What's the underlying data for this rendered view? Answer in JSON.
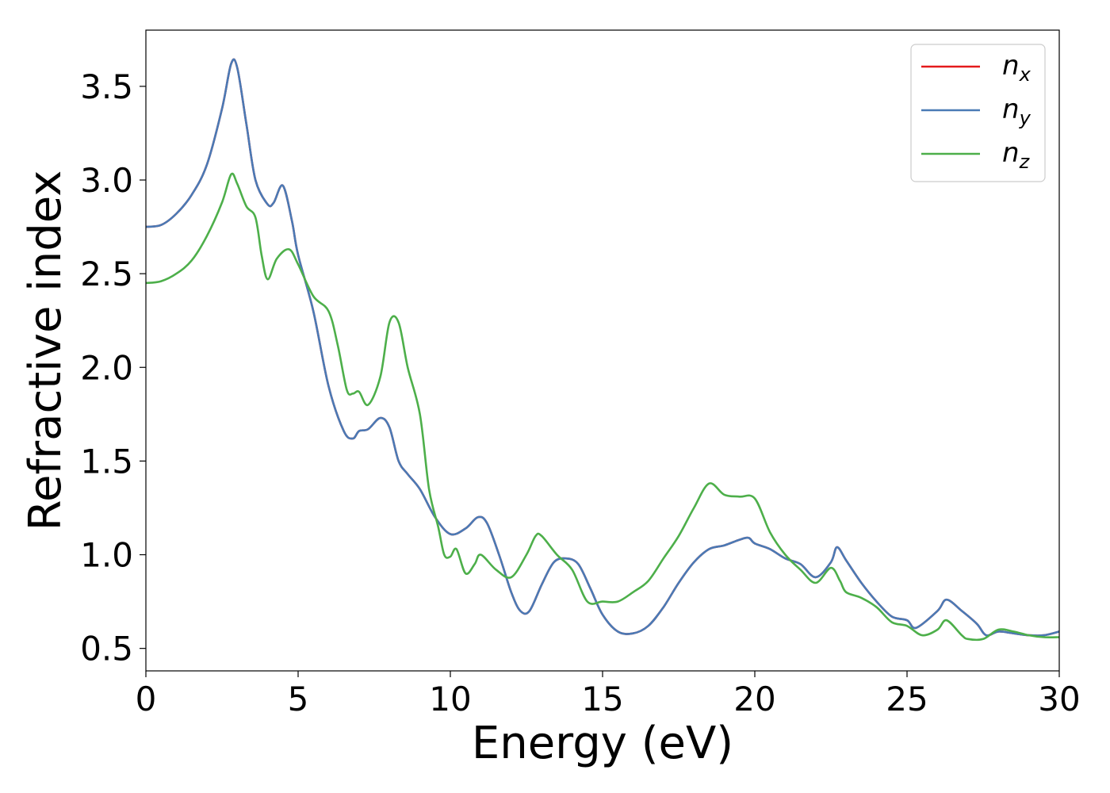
{
  "chart_data": {
    "type": "line",
    "xlabel": "Energy (eV)",
    "ylabel": "Refractive index",
    "xlim": [
      0,
      30
    ],
    "ylim": [
      0.38,
      3.8
    ],
    "x_ticks": [
      0,
      5,
      10,
      15,
      20,
      25,
      30
    ],
    "y_ticks": [
      0.5,
      1.0,
      1.5,
      2.0,
      2.5,
      3.0,
      3.5
    ],
    "x_tick_labels": [
      "0",
      "5",
      "10",
      "15",
      "20",
      "25",
      "30"
    ],
    "y_tick_labels": [
      "0.5",
      "1.0",
      "1.5",
      "2.0",
      "2.5",
      "3.0",
      "3.5"
    ],
    "grid": false,
    "legend_position": "top-right",
    "series": [
      {
        "name": "n",
        "subscript": "x",
        "color": "#e41a1c",
        "x": [
          0,
          0.5,
          1,
          1.5,
          2,
          2.5,
          2.8,
          3,
          3.3,
          3.6,
          4,
          4.2,
          4.5,
          4.8,
          5,
          5.5,
          6,
          6.5,
          6.8,
          7,
          7.3,
          7.7,
          8,
          8.3,
          8.6,
          9,
          9.5,
          10,
          10.5,
          10.9,
          11.2,
          11.6,
          12,
          12.3,
          12.6,
          13,
          13.4,
          13.8,
          14.2,
          14.6,
          15,
          15.5,
          16,
          16.5,
          17,
          17.5,
          18,
          18.5,
          19,
          19.5,
          19.8,
          20,
          20.5,
          21,
          21.5,
          22,
          22.5,
          22.7,
          23,
          23.5,
          24,
          24.5,
          25,
          25.3,
          26,
          26.3,
          26.8,
          27.3,
          27.6,
          28,
          28.5,
          29,
          29.5,
          30
        ],
        "y": [
          2.75,
          2.76,
          2.82,
          2.92,
          3.08,
          3.38,
          3.62,
          3.6,
          3.3,
          3.0,
          2.87,
          2.88,
          2.97,
          2.78,
          2.6,
          2.3,
          1.9,
          1.66,
          1.62,
          1.66,
          1.67,
          1.73,
          1.68,
          1.5,
          1.43,
          1.35,
          1.2,
          1.11,
          1.14,
          1.2,
          1.17,
          1.0,
          0.8,
          0.7,
          0.7,
          0.84,
          0.96,
          0.98,
          0.95,
          0.82,
          0.68,
          0.59,
          0.58,
          0.62,
          0.72,
          0.85,
          0.96,
          1.03,
          1.05,
          1.08,
          1.09,
          1.06,
          1.03,
          0.98,
          0.95,
          0.88,
          0.96,
          1.04,
          0.97,
          0.85,
          0.75,
          0.67,
          0.65,
          0.61,
          0.7,
          0.76,
          0.7,
          0.63,
          0.57,
          0.59,
          0.58,
          0.57,
          0.57,
          0.59
        ]
      },
      {
        "name": "n",
        "subscript": "y",
        "color": "#4a7ab5",
        "x": [
          0,
          0.5,
          1,
          1.5,
          2,
          2.5,
          2.8,
          3,
          3.3,
          3.6,
          4,
          4.2,
          4.5,
          4.8,
          5,
          5.5,
          6,
          6.5,
          6.8,
          7,
          7.3,
          7.7,
          8,
          8.3,
          8.6,
          9,
          9.5,
          10,
          10.5,
          10.9,
          11.2,
          11.6,
          12,
          12.3,
          12.6,
          13,
          13.4,
          13.8,
          14.2,
          14.6,
          15,
          15.5,
          16,
          16.5,
          17,
          17.5,
          18,
          18.5,
          19,
          19.5,
          19.8,
          20,
          20.5,
          21,
          21.5,
          22,
          22.5,
          22.7,
          23,
          23.5,
          24,
          24.5,
          25,
          25.3,
          26,
          26.3,
          26.8,
          27.3,
          27.6,
          28,
          28.5,
          29,
          29.5,
          30
        ],
        "y": [
          2.75,
          2.76,
          2.82,
          2.92,
          3.08,
          3.38,
          3.62,
          3.6,
          3.3,
          3.0,
          2.87,
          2.88,
          2.97,
          2.78,
          2.6,
          2.3,
          1.9,
          1.66,
          1.62,
          1.66,
          1.67,
          1.73,
          1.68,
          1.5,
          1.43,
          1.35,
          1.2,
          1.11,
          1.14,
          1.2,
          1.17,
          1.0,
          0.8,
          0.7,
          0.7,
          0.84,
          0.96,
          0.98,
          0.95,
          0.82,
          0.68,
          0.59,
          0.58,
          0.62,
          0.72,
          0.85,
          0.96,
          1.03,
          1.05,
          1.08,
          1.09,
          1.06,
          1.03,
          0.98,
          0.95,
          0.88,
          0.96,
          1.04,
          0.97,
          0.85,
          0.75,
          0.67,
          0.65,
          0.61,
          0.7,
          0.76,
          0.7,
          0.63,
          0.57,
          0.59,
          0.58,
          0.57,
          0.57,
          0.59
        ]
      },
      {
        "name": "n",
        "subscript": "z",
        "color": "#4daf4a",
        "x": [
          0,
          0.5,
          1,
          1.5,
          2,
          2.5,
          2.8,
          3,
          3.3,
          3.6,
          3.8,
          4,
          4.3,
          4.7,
          5,
          5.5,
          6,
          6.3,
          6.6,
          6.8,
          7,
          7.3,
          7.7,
          8,
          8.3,
          8.6,
          9,
          9.3,
          9.6,
          9.8,
          10,
          10.2,
          10.5,
          10.8,
          11,
          11.5,
          12,
          12.5,
          12.8,
          13,
          13.5,
          14,
          14.5,
          15,
          15.5,
          16,
          16.5,
          17,
          17.5,
          18,
          18.5,
          19,
          19.5,
          20,
          20.5,
          21,
          21.5,
          22,
          22.5,
          22.8,
          23,
          23.5,
          24,
          24.5,
          25,
          25.5,
          26,
          26.3,
          26.8,
          27,
          27.5,
          28,
          28.5,
          29,
          29.5,
          30
        ],
        "y": [
          2.45,
          2.46,
          2.5,
          2.57,
          2.7,
          2.88,
          3.03,
          2.98,
          2.86,
          2.8,
          2.6,
          2.47,
          2.58,
          2.63,
          2.55,
          2.38,
          2.3,
          2.12,
          1.88,
          1.86,
          1.87,
          1.8,
          1.95,
          2.24,
          2.24,
          2.0,
          1.75,
          1.35,
          1.15,
          1.0,
          0.99,
          1.03,
          0.9,
          0.95,
          1.0,
          0.92,
          0.88,
          1.0,
          1.1,
          1.1,
          1.0,
          0.92,
          0.75,
          0.75,
          0.75,
          0.8,
          0.86,
          0.98,
          1.1,
          1.25,
          1.38,
          1.32,
          1.31,
          1.3,
          1.12,
          1.0,
          0.92,
          0.85,
          0.93,
          0.86,
          0.8,
          0.77,
          0.72,
          0.64,
          0.62,
          0.57,
          0.6,
          0.65,
          0.57,
          0.55,
          0.55,
          0.6,
          0.59,
          0.57,
          0.56,
          0.56
        ]
      }
    ]
  }
}
